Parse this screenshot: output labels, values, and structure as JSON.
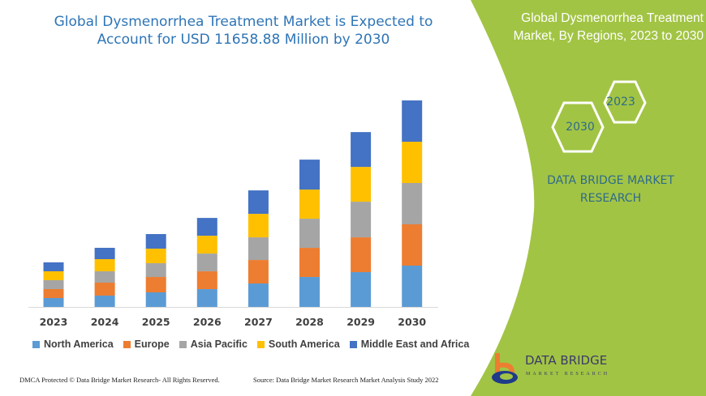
{
  "chart_data": {
    "type": "bar",
    "stacked": true,
    "title": "Global Dysmenorrhea Treatment Market is Expected to Account for USD 11658.88 Million by 2030",
    "categories": [
      "2023",
      "2024",
      "2025",
      "2026",
      "2027",
      "2028",
      "2029",
      "2030"
    ],
    "series": [
      {
        "name": "North America",
        "color": "#5b9bd5",
        "values": [
          503,
          640,
          823,
          1005,
          1325,
          1691,
          1965,
          2332
        ]
      },
      {
        "name": "Europe",
        "color": "#ed7d31",
        "values": [
          503,
          731,
          868,
          1005,
          1325,
          1645,
          1965,
          2332
        ]
      },
      {
        "name": "Asia Pacific",
        "color": "#a5a5a5",
        "values": [
          503,
          640,
          777,
          1005,
          1280,
          1645,
          2011,
          2332
        ]
      },
      {
        "name": "South America",
        "color": "#ffc000",
        "values": [
          503,
          686,
          823,
          1005,
          1325,
          1645,
          1965,
          2331
        ]
      },
      {
        "name": "Middle East and Africa",
        "color": "#4472c4",
        "values": [
          503,
          640,
          823,
          1005,
          1325,
          1691,
          1965,
          2332
        ]
      }
    ],
    "yaxis_visible": false,
    "grid": false,
    "legend_position": "bottom"
  },
  "title_lines": [
    "Global Dysmenorrhea Treatment Market is Expected to",
    "Account for USD 11658.88 Million by 2030"
  ],
  "side_panel": {
    "title_lines": [
      "Global Dysmenorrhea Treatment",
      "Market, By Regions, 2023 to 2030"
    ],
    "hex_a": "2023",
    "hex_b": "2030",
    "brand_lines": [
      "DATA BRIDGE MARKET",
      "RESEARCH"
    ],
    "logo_text": "DATA BRIDGE",
    "logo_sub": "MARKET RESEARCH",
    "panel_color": "#a2c444"
  },
  "footer": {
    "left": "DMCA Protected © Data Bridge Market Research- All Rights Reserved.",
    "right": "Source: Data Bridge Market Research Market Analysis Study 2022"
  }
}
